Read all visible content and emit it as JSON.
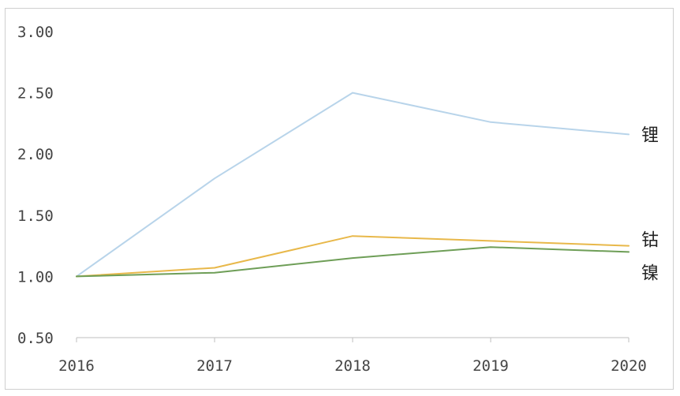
{
  "chart_data": {
    "type": "line",
    "title": "",
    "xlabel": "",
    "ylabel": "",
    "categories": [
      "2016",
      "2017",
      "2018",
      "2019",
      "2020"
    ],
    "ylim": [
      0.5,
      3.0
    ],
    "y_ticks": [
      "0.50",
      "1.00",
      "1.50",
      "2.00",
      "2.50",
      "3.00"
    ],
    "grid": false,
    "legend": "inline-right",
    "series": [
      {
        "name": "锂",
        "color": "#b8d4ea",
        "values": [
          1.0,
          1.8,
          2.5,
          2.26,
          2.16
        ]
      },
      {
        "name": "钴",
        "color": "#e8b84a",
        "values": [
          1.0,
          1.07,
          1.33,
          1.29,
          1.25
        ]
      },
      {
        "name": "镍",
        "color": "#6e9e57",
        "values": [
          1.0,
          1.03,
          1.15,
          1.24,
          1.2
        ]
      }
    ]
  }
}
